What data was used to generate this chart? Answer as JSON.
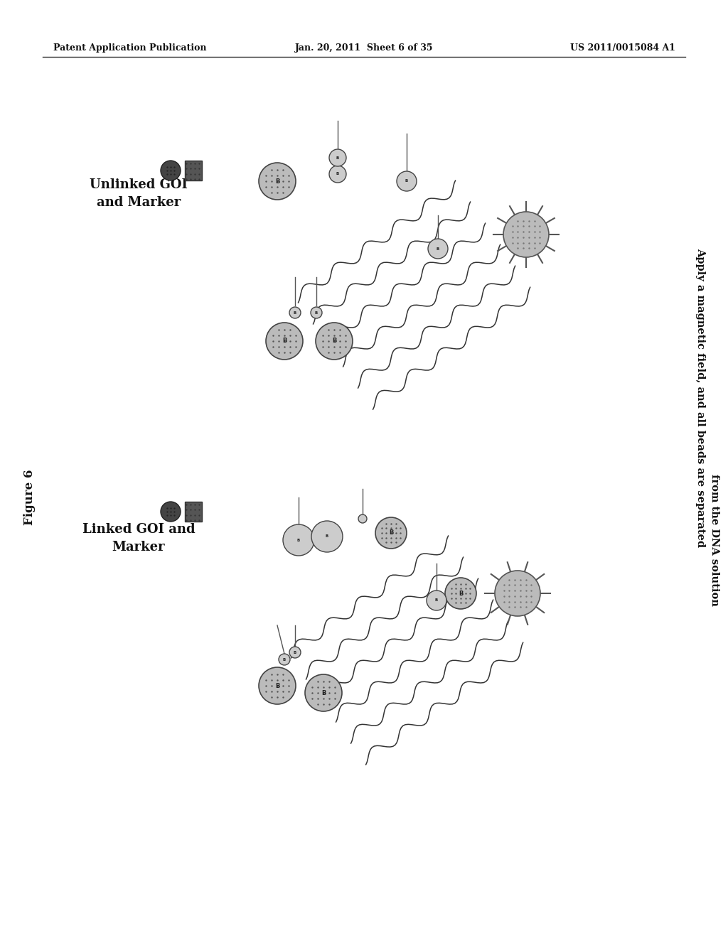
{
  "background_color": "#ffffff",
  "header_left": "Patent Application Publication",
  "header_center": "Jan. 20, 2011  Sheet 6 of 35",
  "header_right": "US 2011/0015084 A1",
  "figure_label": "Figure 6",
  "top_panel_label": "Unlinked GOI\nand Marker",
  "bottom_panel_label": "Linked GOI and\nMarker",
  "right_text_line1": "Apply a magnetic field, and all beads are separated",
  "right_text_line2": "from the DNA solution"
}
